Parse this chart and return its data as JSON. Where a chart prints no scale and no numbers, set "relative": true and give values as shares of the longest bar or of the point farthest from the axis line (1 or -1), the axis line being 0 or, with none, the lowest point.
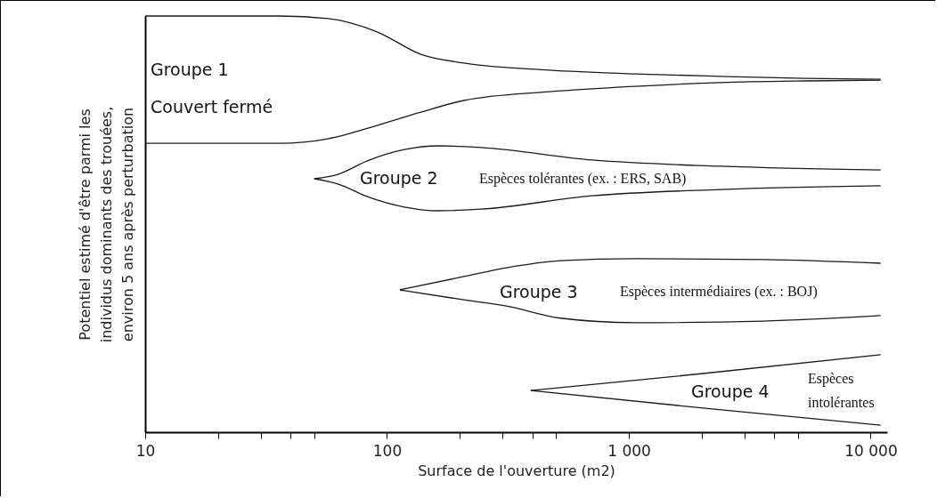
{
  "chart_data": {
    "type": "line",
    "relative": true,
    "log": "x",
    "xlabel": "Surface de l'ouverture (m2)",
    "ylabel": "Potentiel estimé d'être parmi les individus dominants des trouées, environ 5 ans après perturbation",
    "xlim": [
      10,
      11700
    ],
    "xticks": [
      10,
      {
        "value": 20,
        "label": null
      },
      {
        "value": 30,
        "label": null
      },
      {
        "value": 40,
        "label": null
      },
      {
        "value": 50,
        "label": null
      },
      100,
      {
        "value": 200,
        "label": null
      },
      {
        "value": 300,
        "label": null
      },
      {
        "value": 400,
        "label": null
      },
      {
        "value": 500,
        "label": null
      },
      {
        "value": 1000,
        "label": "1 000"
      },
      {
        "value": 2000,
        "label": null
      },
      {
        "value": 3000,
        "label": null
      },
      {
        "value": 4000,
        "label": null
      },
      {
        "value": 5000,
        "label": null
      },
      {
        "value": 10000,
        "label": "10 000"
      }
    ],
    "series": [
      {
        "color": "#1a1a1a",
        "x": [
          10,
          36,
          57,
          91,
          138,
          208,
          469,
          1060,
          2390,
          5380,
          11000
        ],
        "values": [
          1.0,
          1.0,
          0.994,
          0.962,
          0.908,
          0.887,
          0.87,
          0.861,
          0.855,
          0.85,
          0.848
        ]
      },
      {
        "color": "#1a1a1a",
        "x": [
          10,
          36,
          57,
          91,
          138,
          208,
          469,
          1060,
          2390,
          5380,
          11000
        ],
        "values": [
          0.694,
          0.694,
          0.705,
          0.737,
          0.769,
          0.797,
          0.818,
          0.831,
          0.84,
          0.844,
          0.846
        ]
      },
      {
        "color": "#1a1a1a",
        "x": [
          50,
          63,
          83,
          118,
          163,
          245,
          705,
          2390,
          11000
        ],
        "values": [
          0.609,
          0.62,
          0.652,
          0.679,
          0.688,
          0.684,
          0.654,
          0.639,
          0.63
        ]
      },
      {
        "color": "#1a1a1a",
        "x": [
          50,
          63,
          83,
          118,
          163,
          245,
          705,
          2390,
          11000
        ],
        "values": [
          0.609,
          0.596,
          0.566,
          0.541,
          0.532,
          0.536,
          0.568,
          0.583,
          0.592
        ]
      },
      {
        "color": "#1a1a1a",
        "x": [
          113,
          208,
          312,
          521,
          1060,
          3590,
          11000
        ],
        "values": [
          0.342,
          0.374,
          0.395,
          0.412,
          0.417,
          0.415,
          0.406
        ]
      },
      {
        "color": "#1a1a1a",
        "x": [
          113,
          208,
          312,
          521,
          1060,
          3590,
          11000
        ],
        "values": [
          0.342,
          0.318,
          0.303,
          0.274,
          0.263,
          0.267,
          0.28
        ]
      },
      {
        "color": "#1a1a1a",
        "x": [
          393,
          2030,
          11000
        ],
        "values": [
          0.1,
          0.141,
          0.186
        ]
      },
      {
        "color": "#1a1a1a",
        "x": [
          393,
          2030,
          11000
        ],
        "values": [
          0.1,
          0.058,
          0.017
        ]
      }
    ],
    "annotations": [
      "Groupe 1",
      "Couvert fermé",
      "Groupe 2",
      "Groupe 3",
      "Groupe 4",
      "Espèces tolérantes (ex. : ERS, SAB)",
      "Espèces intermédiaires (ex. : BOJ)",
      "Espèces",
      "intolérantes"
    ]
  }
}
